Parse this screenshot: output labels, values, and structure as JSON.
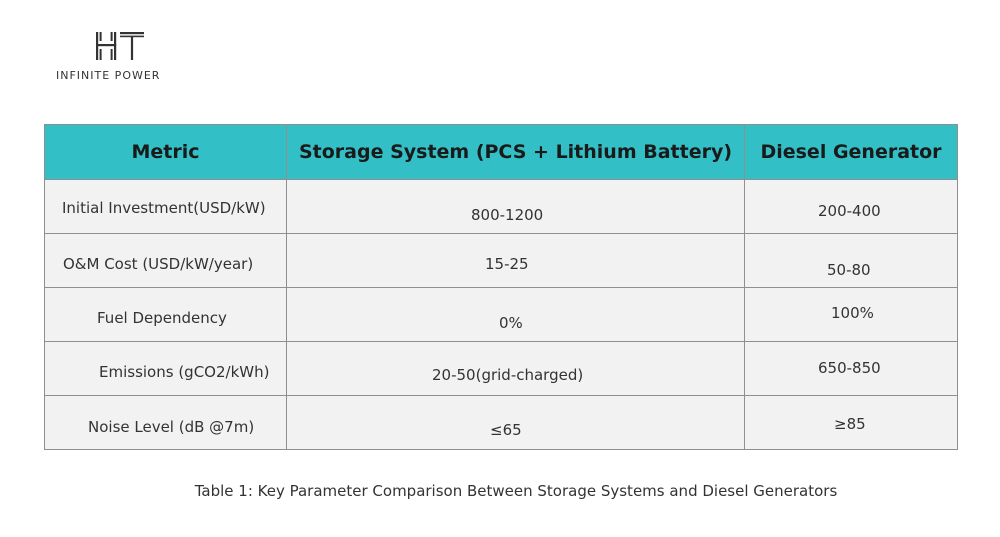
{
  "brand": {
    "logo_letters": "HT",
    "tagline": "INFINITE POWER"
  },
  "table": {
    "headers": [
      "Metric",
      "Storage System (PCS + Lithium Battery)",
      "Diesel Generator"
    ],
    "rows": [
      {
        "metric": "Initial Investment(USD/kW)",
        "storage": "800-1200",
        "diesel": "200-400"
      },
      {
        "metric": "O&M Cost (USD/kW/year)",
        "storage": "15-25",
        "diesel": "50-80"
      },
      {
        "metric": "Fuel Dependency",
        "storage": "0%",
        "diesel": "100%"
      },
      {
        "metric": "Emissions (gCO2/kWh)",
        "storage": "20-50(grid-charged)",
        "diesel": "650-850"
      },
      {
        "metric": "Noise Level (dB @7m)",
        "storage": "≤65",
        "diesel": "≥85"
      }
    ]
  },
  "caption": "Table 1: Key Parameter Comparison Between Storage Systems and Diesel Generators",
  "colors": {
    "header_bg": "#33bfc6",
    "cell_bg": "#f2f2f2",
    "border": "#8f8f8f"
  }
}
